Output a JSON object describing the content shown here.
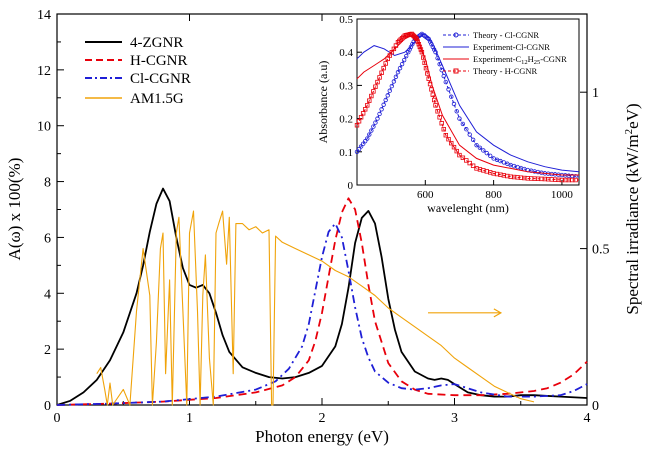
{
  "chart_data": {
    "type": "line",
    "xlabel": "Photon energy (eV)",
    "ylabel_left": "A(ω) x 100(%)",
    "ylabel_right": "Spectral irradiance (kW/m²eV)",
    "ylabel_right_pre": "Spectral irradiance (kW/m",
    "ylabel_right_sup": "2",
    "ylabel_right_post": "eV)",
    "xlim": [
      0,
      4
    ],
    "ylim_left": [
      0,
      14
    ],
    "ylim_right": [
      0,
      1.25
    ],
    "x_ticks": [
      "0",
      "1",
      "2",
      "3",
      "4"
    ],
    "y_ticks_left": [
      "0",
      "2",
      "4",
      "6",
      "8",
      "10",
      "12",
      "14"
    ],
    "y_ticks_right": [
      "0",
      "0.5",
      "1"
    ],
    "colors": {
      "black": "#000000",
      "red": "#e8000b",
      "blue": "#1f1fd6",
      "orange": "#f0a30a"
    },
    "legend": [
      "4-ZGNR",
      "H-CGNR",
      "Cl-CGNR",
      "AM1.5G"
    ],
    "series": [
      {
        "name": "4-ZGNR",
        "color": "#000000",
        "style": "solid",
        "axis": "left",
        "x": [
          0,
          0.1,
          0.2,
          0.3,
          0.4,
          0.5,
          0.6,
          0.65,
          0.7,
          0.75,
          0.8,
          0.85,
          0.9,
          0.95,
          1.0,
          1.05,
          1.1,
          1.15,
          1.2,
          1.25,
          1.3,
          1.4,
          1.5,
          1.6,
          1.7,
          1.8,
          1.9,
          2.0,
          2.1,
          2.15,
          2.2,
          2.25,
          2.3,
          2.35,
          2.4,
          2.45,
          2.5,
          2.55,
          2.6,
          2.7,
          2.8,
          2.85,
          2.9,
          2.95,
          3.0,
          3.1,
          3.2,
          3.3,
          3.4,
          3.5,
          3.6,
          3.8,
          4.0
        ],
        "y": [
          0,
          0.15,
          0.45,
          0.9,
          1.6,
          2.6,
          4.0,
          5.0,
          6.2,
          7.2,
          7.75,
          7.3,
          6.0,
          4.9,
          4.3,
          4.2,
          4.3,
          4.0,
          3.3,
          2.5,
          1.9,
          1.35,
          1.15,
          1.0,
          0.95,
          1.0,
          1.15,
          1.4,
          2.1,
          2.9,
          4.2,
          5.8,
          6.7,
          6.95,
          6.5,
          5.3,
          3.8,
          2.7,
          1.9,
          1.2,
          0.95,
          0.9,
          0.95,
          0.9,
          0.75,
          0.45,
          0.35,
          0.3,
          0.3,
          0.35,
          0.35,
          0.3,
          0.25
        ]
      },
      {
        "name": "H-CGNR",
        "color": "#e8000b",
        "style": "dash",
        "axis": "left",
        "x": [
          0,
          0.4,
          0.8,
          1.2,
          1.5,
          1.7,
          1.8,
          1.9,
          1.95,
          2.0,
          2.05,
          2.1,
          2.15,
          2.2,
          2.25,
          2.3,
          2.35,
          2.4,
          2.5,
          2.6,
          2.7,
          2.8,
          3.0,
          3.2,
          3.4,
          3.6,
          3.7,
          3.8,
          3.9,
          4.0
        ],
        "y": [
          0,
          0.05,
          0.12,
          0.25,
          0.45,
          0.7,
          1.0,
          1.6,
          2.3,
          3.3,
          4.6,
          5.9,
          6.9,
          7.4,
          7.0,
          5.8,
          4.3,
          3.0,
          1.5,
          0.85,
          0.55,
          0.4,
          0.35,
          0.35,
          0.4,
          0.5,
          0.6,
          0.8,
          1.1,
          1.55
        ]
      },
      {
        "name": "Cl-CGNR",
        "color": "#1f1fd6",
        "style": "dashdot",
        "axis": "left",
        "x": [
          0,
          0.4,
          0.8,
          1.2,
          1.5,
          1.65,
          1.75,
          1.85,
          1.9,
          1.95,
          2.0,
          2.05,
          2.1,
          2.15,
          2.2,
          2.25,
          2.3,
          2.35,
          2.4,
          2.5,
          2.6,
          2.7,
          2.8,
          2.9,
          3.0,
          3.2,
          3.4,
          3.6,
          3.8,
          3.9,
          4.0
        ],
        "y": [
          0,
          0.05,
          0.12,
          0.3,
          0.55,
          0.85,
          1.3,
          2.1,
          2.9,
          4.1,
          5.3,
          6.2,
          6.5,
          6.0,
          4.8,
          3.5,
          2.4,
          1.7,
          1.2,
          0.8,
          0.6,
          0.55,
          0.6,
          0.7,
          0.75,
          0.45,
          0.3,
          0.3,
          0.35,
          0.5,
          0.75
        ]
      },
      {
        "name": "AM1.5G",
        "color": "#f0a30a",
        "style": "solid",
        "axis": "right",
        "x": [
          0.3,
          0.33,
          0.36,
          0.38,
          0.4,
          0.42,
          0.5,
          0.55,
          0.6,
          0.65,
          0.7,
          0.72,
          0.75,
          0.78,
          0.8,
          0.82,
          0.85,
          0.87,
          0.9,
          0.92,
          0.95,
          0.98,
          1.0,
          1.03,
          1.06,
          1.08,
          1.1,
          1.12,
          1.15,
          1.18,
          1.2,
          1.22,
          1.25,
          1.28,
          1.3,
          1.33,
          1.35,
          1.4,
          1.45,
          1.5,
          1.55,
          1.6,
          1.62,
          1.63,
          1.65,
          1.7,
          1.8,
          1.9,
          2.0,
          2.1,
          2.2,
          2.3,
          2.4,
          2.5,
          2.6,
          2.7,
          2.8,
          2.9,
          3.0,
          3.1,
          3.2,
          3.3,
          3.4,
          3.5,
          3.6
        ],
        "y": [
          0.1,
          0.12,
          0.05,
          0.0,
          0.07,
          0.0,
          0.05,
          0.0,
          0.3,
          0.5,
          0.35,
          0.0,
          0.2,
          0.5,
          0.55,
          0.1,
          0.4,
          0.0,
          0.55,
          0.6,
          0.3,
          0.0,
          0.55,
          0.62,
          0.3,
          0.0,
          0.35,
          0.48,
          0.15,
          0.0,
          0.55,
          0.58,
          0.62,
          0.45,
          0.6,
          0.1,
          0.58,
          0.58,
          0.56,
          0.57,
          0.55,
          0.56,
          0.0,
          0.0,
          0.54,
          0.52,
          0.5,
          0.48,
          0.46,
          0.43,
          0.41,
          0.38,
          0.35,
          0.31,
          0.28,
          0.25,
          0.22,
          0.19,
          0.15,
          0.12,
          0.09,
          0.06,
          0.04,
          0.02,
          0.01
        ]
      }
    ],
    "annotation_arrow": {
      "x_from": 2.8,
      "x_to": 3.35,
      "y_left": 3.3
    },
    "inset": {
      "xlabel": "wavelenght (nm)",
      "ylabel": "Absorbance (a.u)",
      "xlim": [
        400,
        1050
      ],
      "ylim": [
        0,
        0.5
      ],
      "x_ticks": [
        "600",
        "800",
        "1000"
      ],
      "y_ticks": [
        "0",
        "0.1",
        "0.2",
        "0.3",
        "0.4",
        "0.5"
      ],
      "legend": [
        "Theory - Cl-CGNR",
        "Experiment-Cl-CGNR",
        "Experiment-C",
        "H",
        "-CGNR",
        "Theory - H-CGNR"
      ],
      "legend_sub": [
        "12",
        "25"
      ],
      "series": [
        {
          "name": "Theory - Cl-CGNR",
          "color": "#1f1fd6",
          "style": "dash-marker",
          "x": [
            400,
            430,
            460,
            490,
            520,
            550,
            570,
            590,
            610,
            630,
            660,
            700,
            750,
            800,
            850,
            900,
            950,
            1000,
            1050
          ],
          "y": [
            0.1,
            0.14,
            0.2,
            0.27,
            0.34,
            0.4,
            0.44,
            0.455,
            0.44,
            0.4,
            0.31,
            0.2,
            0.12,
            0.08,
            0.06,
            0.045,
            0.035,
            0.03,
            0.025
          ]
        },
        {
          "name": "Experiment-Cl-CGNR",
          "color": "#1f1fd6",
          "style": "solid",
          "x": [
            400,
            420,
            450,
            480,
            510,
            540,
            560,
            580,
            600,
            620,
            650,
            700,
            750,
            800,
            850,
            900,
            950,
            1000,
            1050
          ],
          "y": [
            0.38,
            0.4,
            0.42,
            0.41,
            0.39,
            0.4,
            0.42,
            0.445,
            0.455,
            0.43,
            0.36,
            0.24,
            0.16,
            0.12,
            0.09,
            0.07,
            0.055,
            0.045,
            0.04
          ]
        },
        {
          "name": "Experiment-C12H25-CGNR",
          "color": "#e8000b",
          "style": "solid",
          "x": [
            400,
            420,
            450,
            480,
            510,
            540,
            560,
            580,
            600,
            620,
            650,
            700,
            750,
            800,
            850,
            900,
            950,
            1000,
            1050
          ],
          "y": [
            0.32,
            0.34,
            0.36,
            0.38,
            0.41,
            0.44,
            0.45,
            0.43,
            0.38,
            0.3,
            0.21,
            0.12,
            0.08,
            0.06,
            0.05,
            0.04,
            0.035,
            0.03,
            0.03
          ]
        },
        {
          "name": "Theory - H-CGNR",
          "color": "#e8000b",
          "style": "dash-marker",
          "x": [
            400,
            430,
            460,
            490,
            520,
            540,
            560,
            575,
            590,
            610,
            630,
            660,
            700,
            750,
            800,
            850,
            900,
            950,
            1000,
            1050
          ],
          "y": [
            0.18,
            0.24,
            0.31,
            0.38,
            0.43,
            0.45,
            0.455,
            0.44,
            0.4,
            0.32,
            0.24,
            0.15,
            0.09,
            0.05,
            0.035,
            0.025,
            0.02,
            0.018,
            0.015,
            0.015
          ]
        }
      ]
    }
  }
}
